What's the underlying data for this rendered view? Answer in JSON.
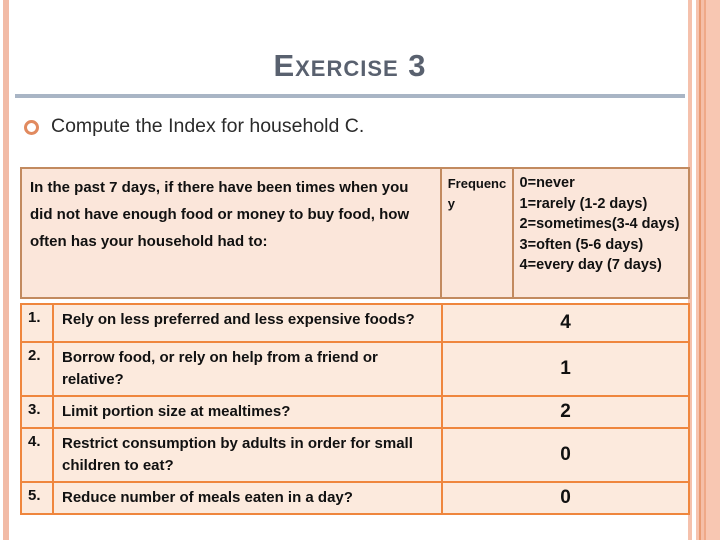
{
  "slide": {
    "title": "Exercise 3",
    "bullet_text": "Compute the Index for household C."
  },
  "table": {
    "header": {
      "question_intro": "In the past 7 days, if there have been times when you did not have enough food or money to buy food, how often has your household had to:",
      "frequency_label": "Frequency",
      "scale_options": [
        "0=never",
        "1=rarely (1-2 days)",
        "2=sometimes(3-4 days)",
        "3=often (5-6 days)",
        "4=every day (7 days)"
      ]
    },
    "rows": [
      {
        "num": "1.",
        "question": "Rely on less preferred and less expensive foods?",
        "frequency": "4"
      },
      {
        "num": "2.",
        "question": "Borrow food, or rely on help from a friend or relative?",
        "frequency": "1"
      },
      {
        "num": "3.",
        "question": "Limit portion size at mealtimes?",
        "frequency": "2"
      },
      {
        "num": "4.",
        "question": "Restrict consumption by adults in order for small children to eat?",
        "frequency": "0"
      },
      {
        "num": "5.",
        "question": "Reduce number of meals eaten in a day?",
        "frequency": "0"
      }
    ]
  },
  "colors": {
    "title_text": "#59616F",
    "title_rule": "#A9B5C5",
    "bullet_ring": "#E18A5F",
    "header_border": "#C28A5F",
    "body_border": "#EF863D",
    "header_cell_bg": "#FBE6DA",
    "body_cell_bg": "#FCEADD",
    "accent_stripe": "#F2BBA6"
  }
}
